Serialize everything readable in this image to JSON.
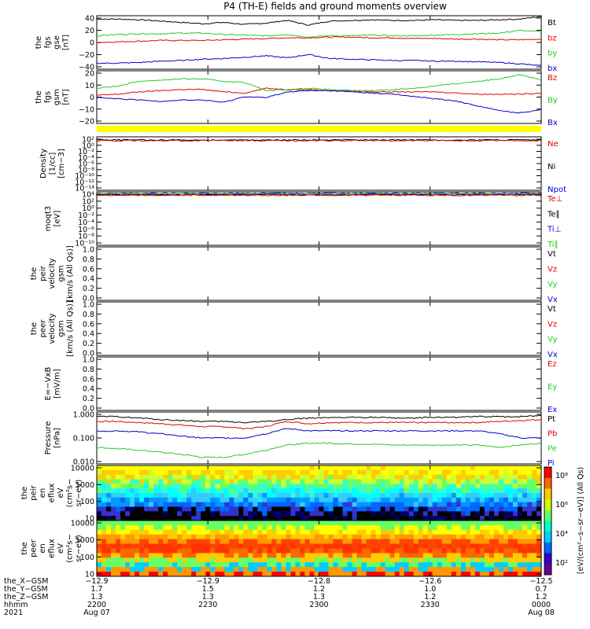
{
  "title": "P4 (TH-E) fields and ground moments overview",
  "colors": {
    "black": "#000000",
    "red": "#e00000",
    "green": "#22cc22",
    "blue": "#0000cc",
    "yellow": "#ffff00"
  },
  "chart_data": [
    {
      "type": "line",
      "id": "fgs",
      "ylabel": [
        "the",
        "fgs",
        "gse",
        "[nT]"
      ],
      "ylim": [
        -40,
        40
      ],
      "ticks": [
        "40",
        "20",
        "0",
        "−20",
        "−40"
      ],
      "tick_vals": [
        40,
        20,
        0,
        -20,
        -40
      ],
      "legend": [
        {
          "label": "Bt",
          "color": "#000000"
        },
        {
          "label": "bz",
          "color": "#e00000"
        },
        {
          "label": "by",
          "color": "#22cc22"
        },
        {
          "label": "bx",
          "color": "#0000cc"
        }
      ],
      "series": [
        {
          "name": "Bt",
          "color": "#000000",
          "values": [
            35,
            35,
            34,
            32,
            30,
            28,
            30,
            27,
            29,
            33,
            26,
            32,
            33,
            34,
            33,
            33,
            34,
            33,
            33,
            34,
            35,
            39
          ]
        },
        {
          "name": "bz",
          "color": "#e00000",
          "values": [
            0,
            1,
            2,
            3,
            3,
            3,
            4,
            5,
            6,
            7,
            7,
            8,
            8,
            7,
            7,
            6,
            6,
            5,
            5,
            4,
            4,
            5
          ]
        },
        {
          "name": "by",
          "color": "#22cc22",
          "values": [
            10,
            12,
            13,
            13,
            14,
            14,
            12,
            11,
            10,
            12,
            8,
            10,
            10,
            11,
            10,
            10,
            11,
            12,
            13,
            14,
            18,
            16
          ]
        },
        {
          "name": "bx",
          "color": "#0000cc",
          "values": [
            -31,
            -31,
            -30,
            -28,
            -27,
            -25,
            -24,
            -22,
            -20,
            -23,
            -18,
            -24,
            -25,
            -26,
            -27,
            -27,
            -28,
            -28,
            -29,
            -30,
            -32,
            -35
          ]
        }
      ]
    },
    {
      "type": "line",
      "id": "fgs_gsm",
      "ylabel": [
        "the",
        "fgs",
        "gsm",
        "[nT]"
      ],
      "ylim": [
        -25,
        20
      ],
      "ticks": [
        "20",
        "10",
        "0",
        "−10",
        "−20"
      ],
      "tick_vals": [
        20,
        10,
        0,
        -10,
        -20
      ],
      "legend": [
        {
          "label": "Bz",
          "color": "#e00000"
        },
        {
          "label": "By",
          "color": "#22cc22"
        },
        {
          "label": "Bx",
          "color": "#0000cc"
        }
      ],
      "series": [
        {
          "name": "Bz",
          "color": "#e00000",
          "values": [
            -1,
            0,
            2,
            3,
            4,
            4,
            2,
            1,
            5,
            4,
            4,
            3,
            3,
            2,
            2,
            2,
            2,
            1,
            0,
            0,
            0,
            1
          ]
        },
        {
          "name": "By",
          "color": "#22cc22",
          "values": [
            5,
            7,
            11,
            12,
            13,
            13,
            11,
            10,
            3,
            4,
            5,
            4,
            3,
            3,
            4,
            5,
            7,
            9,
            11,
            13,
            17,
            12
          ]
        },
        {
          "name": "Bx",
          "color": "#0000cc",
          "values": [
            -3,
            -4,
            -5,
            -6,
            -5,
            -5,
            -7,
            -2,
            -3,
            2,
            3,
            3,
            2,
            1,
            0,
            -2,
            -4,
            -6,
            -10,
            -14,
            -16,
            -13
          ]
        }
      ]
    },
    {
      "type": "line",
      "id": "density",
      "ylabel": [
        "Density",
        "[1/cc]",
        "[cm−3]"
      ],
      "scale": "log",
      "ticks": [
        "10²",
        "10⁰",
        "10⁻²",
        "10⁻⁴",
        "10⁻⁶",
        "10⁻⁸",
        "10⁻¹⁰",
        "10⁻¹²",
        "10⁻¹⁴"
      ],
      "legend": [
        {
          "label": "Ne",
          "color": "#e00000"
        },
        {
          "label": "Ni",
          "color": "#000000"
        },
        {
          "label": "Npot",
          "color": "#0000cc"
        }
      ]
    },
    {
      "type": "line",
      "id": "temp",
      "ylabel": [
        "moqt3",
        "[eV]"
      ],
      "scale": "log",
      "ticks": [
        "10⁴",
        "10²",
        "10⁰",
        "10⁻²",
        "10⁻⁴",
        "10⁻⁶",
        "10⁻⁸",
        "10⁻¹⁰"
      ],
      "legend": [
        {
          "label": "Te⊥",
          "color": "#e00000"
        },
        {
          "label": "Te∥",
          "color": "#000000"
        },
        {
          "label": "Ti⊥",
          "color": "#0000cc"
        },
        {
          "label": "Ti∥",
          "color": "#22cc22"
        }
      ]
    },
    {
      "type": "line",
      "id": "peir_v",
      "ylabel": [
        "the",
        "peir",
        "velocity",
        "gsm",
        "[km/s (All Qs)]"
      ],
      "ylim": [
        0,
        1
      ],
      "ticks": [
        "1.0",
        "0.8",
        "0.6",
        "0.4",
        "0.2",
        "0.0"
      ],
      "legend": [
        {
          "label": "Vt",
          "color": "#000000"
        },
        {
          "label": "Vz",
          "color": "#e00000"
        },
        {
          "label": "Vy",
          "color": "#22cc22"
        },
        {
          "label": "Vx",
          "color": "#0000cc"
        }
      ]
    },
    {
      "type": "line",
      "id": "peer_v",
      "ylabel": [
        "the",
        "peer",
        "velocity",
        "gsm",
        "[km/s (All Qs)]"
      ],
      "ylim": [
        0,
        1
      ],
      "ticks": [
        "1.0",
        "0.8",
        "0.6",
        "0.4",
        "0.2",
        "0.0"
      ],
      "legend": [
        {
          "label": "Vt",
          "color": "#000000"
        },
        {
          "label": "Vz",
          "color": "#e00000"
        },
        {
          "label": "Vy",
          "color": "#22cc22"
        },
        {
          "label": "Vx",
          "color": "#0000cc"
        }
      ]
    },
    {
      "type": "line",
      "id": "efield",
      "ylabel": [
        "E=−VxB",
        "[mV/m]"
      ],
      "ylim": [
        0,
        1
      ],
      "ticks": [
        "1.0",
        "0.8",
        "0.6",
        "0.4",
        "0.2",
        "0.0"
      ],
      "legend": [
        {
          "label": "Ez",
          "color": "#e00000"
        },
        {
          "label": "Ey",
          "color": "#22cc22"
        },
        {
          "label": "Ex",
          "color": "#0000cc"
        }
      ]
    },
    {
      "type": "line",
      "id": "pressure",
      "ylabel": [
        "Pressure",
        "[nPa]"
      ],
      "scale": "log",
      "ticks": [
        "1.000",
        "0.100",
        "0.010"
      ],
      "legend": [
        {
          "label": "Pt",
          "color": "#000000"
        },
        {
          "label": "Pb",
          "color": "#e00000"
        },
        {
          "label": "Pe",
          "color": "#22cc22"
        },
        {
          "label": "Pi",
          "color": "#0000cc"
        }
      ],
      "series": [
        {
          "name": "Pt",
          "color": "#000000",
          "values": [
            0.8,
            0.8,
            0.7,
            0.6,
            0.55,
            0.5,
            0.5,
            0.45,
            0.5,
            0.6,
            0.7,
            0.7,
            0.75,
            0.75,
            0.7,
            0.7,
            0.75,
            0.75,
            0.8,
            0.8,
            0.8,
            0.9
          ]
        },
        {
          "name": "Pb",
          "color": "#e00000",
          "values": [
            0.5,
            0.5,
            0.45,
            0.4,
            0.35,
            0.3,
            0.3,
            0.25,
            0.3,
            0.5,
            0.4,
            0.45,
            0.45,
            0.45,
            0.45,
            0.45,
            0.45,
            0.45,
            0.45,
            0.5,
            0.55,
            0.6
          ]
        },
        {
          "name": "Pe",
          "color": "#22cc22",
          "values": [
            0.04,
            0.035,
            0.03,
            0.025,
            0.02,
            0.015,
            0.015,
            0.02,
            0.03,
            0.05,
            0.06,
            0.06,
            0.055,
            0.055,
            0.05,
            0.05,
            0.05,
            0.05,
            0.05,
            0.04,
            0.05,
            0.06
          ]
        },
        {
          "name": "Pi",
          "color": "#0000cc",
          "values": [
            0.2,
            0.2,
            0.18,
            0.15,
            0.12,
            0.1,
            0.1,
            0.1,
            0.15,
            0.25,
            0.2,
            0.2,
            0.2,
            0.2,
            0.2,
            0.2,
            0.2,
            0.2,
            0.2,
            0.15,
            0.1,
            0.1
          ]
        }
      ]
    },
    {
      "type": "heatmap",
      "id": "peir_en",
      "ylabel": [
        "the",
        "peir",
        "en",
        "eflux",
        "eV",
        "(cm²s−",
        "sr−eV)"
      ],
      "scale": "log",
      "ticks": [
        "10000",
        "1000",
        "100",
        "10"
      ]
    },
    {
      "type": "heatmap",
      "id": "peer_en",
      "ylabel": [
        "the",
        "peer",
        "en",
        "eflux",
        "eV",
        "(cm²s−",
        "sr−eV)"
      ],
      "scale": "log",
      "ticks": [
        "10000",
        "1000",
        "100",
        "10"
      ]
    }
  ],
  "colorbar": {
    "title": "[eV/(cm²−s−sr−eV)] (All Qs)",
    "ticks": [
      "10⁸",
      "10⁶",
      "10⁴",
      "10²"
    ]
  },
  "orbit_rows": {
    "labels": [
      "the_X−GSM",
      "the_Y−GSM",
      "the_Z−GSM",
      "hhmm",
      "2021"
    ],
    "columns": [
      [
        "−12.9",
        "1.7",
        "1.3",
        "2200",
        "Aug 07"
      ],
      [
        "−12.9",
        "1.5",
        "1.3",
        "2230",
        ""
      ],
      [
        "−12.8",
        "1.2",
        "1.3",
        "2300",
        ""
      ],
      [
        "−12.6",
        "1.0",
        "1.2",
        "2330",
        ""
      ],
      [
        "−12.5",
        "0.7",
        "1.2",
        "0000",
        "Aug 08"
      ]
    ]
  }
}
